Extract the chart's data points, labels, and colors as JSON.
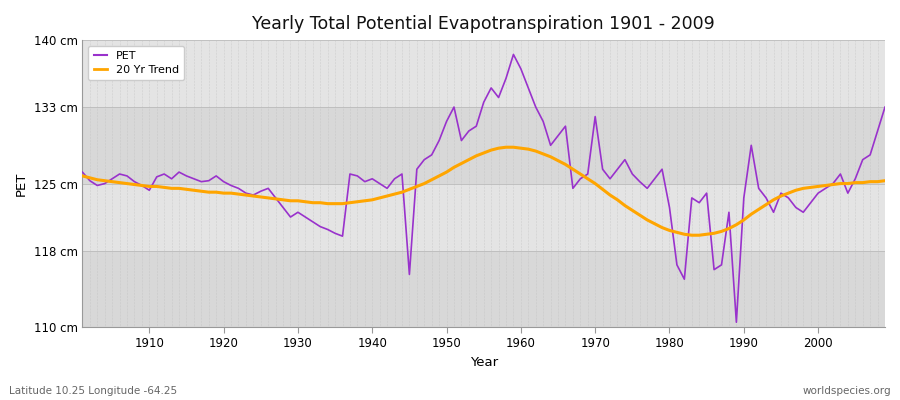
{
  "title": "Yearly Total Potential Evapotranspiration 1901 - 2009",
  "ylabel": "PET",
  "xlabel": "Year",
  "footer_left": "Latitude 10.25 Longitude -64.25",
  "footer_right": "worldspecies.org",
  "pet_color": "#9932CC",
  "trend_color": "#FFA500",
  "fig_bg_color": "#ffffff",
  "plot_bg_color": "#e0e0e0",
  "band_color_light": "#e8e8e8",
  "band_color_dark": "#d8d8d8",
  "ylim": [
    110,
    140
  ],
  "yticks": [
    110,
    118,
    125,
    133,
    140
  ],
  "ytick_labels": [
    "110 cm",
    "118 cm",
    "125 cm",
    "133 cm",
    "140 cm"
  ],
  "years": [
    1901,
    1902,
    1903,
    1904,
    1905,
    1906,
    1907,
    1908,
    1909,
    1910,
    1911,
    1912,
    1913,
    1914,
    1915,
    1916,
    1917,
    1918,
    1919,
    1920,
    1921,
    1922,
    1923,
    1924,
    1925,
    1926,
    1927,
    1928,
    1929,
    1930,
    1931,
    1932,
    1933,
    1934,
    1935,
    1936,
    1937,
    1938,
    1939,
    1940,
    1941,
    1942,
    1943,
    1944,
    1945,
    1946,
    1947,
    1948,
    1949,
    1950,
    1951,
    1952,
    1953,
    1954,
    1955,
    1956,
    1957,
    1958,
    1959,
    1960,
    1961,
    1962,
    1963,
    1964,
    1965,
    1966,
    1967,
    1968,
    1969,
    1970,
    1971,
    1972,
    1973,
    1974,
    1975,
    1976,
    1977,
    1978,
    1979,
    1980,
    1981,
    1982,
    1983,
    1984,
    1985,
    1986,
    1987,
    1988,
    1989,
    1990,
    1991,
    1992,
    1993,
    1994,
    1995,
    1996,
    1997,
    1998,
    1999,
    2000,
    2001,
    2002,
    2003,
    2004,
    2005,
    2006,
    2007,
    2008,
    2009
  ],
  "pet_values": [
    126.2,
    125.3,
    124.8,
    125.0,
    125.5,
    126.0,
    125.8,
    125.2,
    124.8,
    124.3,
    125.7,
    126.0,
    125.5,
    126.2,
    125.8,
    125.5,
    125.2,
    125.3,
    125.8,
    125.2,
    124.8,
    124.5,
    124.0,
    123.8,
    124.2,
    124.5,
    123.5,
    122.5,
    121.5,
    122.0,
    121.5,
    121.0,
    120.5,
    120.2,
    119.8,
    119.5,
    126.0,
    125.8,
    125.2,
    125.5,
    125.0,
    124.5,
    125.5,
    126.0,
    115.5,
    126.5,
    127.5,
    128.0,
    129.5,
    131.5,
    133.0,
    129.5,
    130.5,
    131.0,
    133.5,
    135.0,
    134.0,
    136.0,
    138.5,
    137.0,
    135.0,
    133.0,
    131.5,
    129.0,
    130.0,
    131.0,
    124.5,
    125.5,
    126.0,
    132.0,
    126.5,
    125.5,
    126.5,
    127.5,
    126.0,
    125.2,
    124.5,
    125.5,
    126.5,
    122.5,
    116.5,
    115.0,
    123.5,
    123.0,
    124.0,
    116.0,
    116.5,
    122.0,
    110.5,
    123.5,
    129.0,
    124.5,
    123.5,
    122.0,
    124.0,
    123.5,
    122.5,
    122.0,
    123.0,
    124.0,
    124.5,
    125.0,
    126.0,
    124.0,
    125.5,
    127.5,
    128.0,
    130.5,
    133.0
  ],
  "trend_values": [
    125.8,
    125.6,
    125.4,
    125.3,
    125.2,
    125.1,
    125.0,
    124.9,
    124.8,
    124.7,
    124.7,
    124.6,
    124.5,
    124.5,
    124.4,
    124.3,
    124.2,
    124.1,
    124.1,
    124.0,
    124.0,
    123.9,
    123.8,
    123.7,
    123.6,
    123.5,
    123.4,
    123.3,
    123.2,
    123.2,
    123.1,
    123.0,
    123.0,
    122.9,
    122.9,
    122.9,
    123.0,
    123.1,
    123.2,
    123.3,
    123.5,
    123.7,
    123.9,
    124.1,
    124.4,
    124.7,
    125.0,
    125.4,
    125.8,
    126.2,
    126.7,
    127.1,
    127.5,
    127.9,
    128.2,
    128.5,
    128.7,
    128.8,
    128.8,
    128.7,
    128.6,
    128.4,
    128.1,
    127.8,
    127.4,
    127.0,
    126.5,
    126.0,
    125.5,
    125.0,
    124.4,
    123.8,
    123.3,
    122.7,
    122.2,
    121.7,
    121.2,
    120.8,
    120.4,
    120.1,
    119.9,
    119.7,
    119.6,
    119.6,
    119.7,
    119.8,
    120.0,
    120.3,
    120.7,
    121.2,
    121.8,
    122.3,
    122.8,
    123.3,
    123.7,
    124.0,
    124.3,
    124.5,
    124.6,
    124.7,
    124.8,
    124.9,
    125.0,
    125.0,
    125.1,
    125.1,
    125.2,
    125.2,
    125.3
  ]
}
